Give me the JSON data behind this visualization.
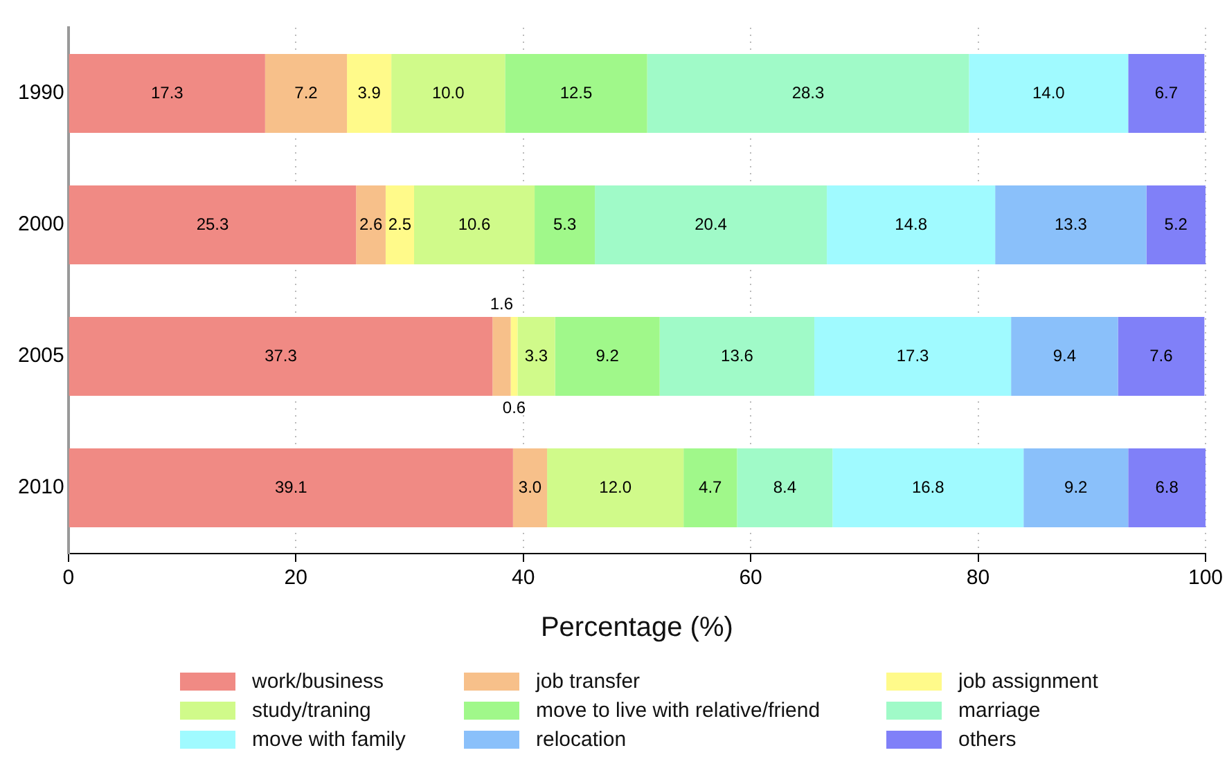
{
  "chart_data": {
    "type": "bar",
    "orientation": "horizontal",
    "stacked": true,
    "categories": [
      "1990",
      "2000",
      "2005",
      "2010"
    ],
    "xlabel": "Percentage (%)",
    "xlim": [
      0,
      100
    ],
    "xticks": [
      0,
      20,
      40,
      60,
      80,
      100
    ],
    "grid": "x",
    "legend": "bottom",
    "series": [
      {
        "name": "work/business",
        "color": "#f08a84",
        "values": [
          17.3,
          25.3,
          37.3,
          39.1
        ],
        "value_labels": [
          "17.3",
          "25.3",
          "37.3",
          "39.1"
        ]
      },
      {
        "name": "job transfer",
        "color": "#f7c08a",
        "values": [
          7.2,
          2.6,
          1.6,
          3.0
        ],
        "value_labels": [
          "7.2",
          "2.6",
          "1.6",
          "3.0"
        ]
      },
      {
        "name": "job assignment",
        "color": "#fffa8a",
        "values": [
          3.9,
          2.5,
          0.6,
          null
        ],
        "value_labels": [
          "3.9",
          "2.5",
          "0.6",
          null
        ]
      },
      {
        "name": "study/traning",
        "color": "#d0fa8a",
        "values": [
          10.0,
          10.6,
          3.3,
          12.0
        ],
        "value_labels": [
          "10.0",
          "10.6",
          "3.3",
          "12.0"
        ]
      },
      {
        "name": "move to live with relative/friend",
        "color": "#a0f88a",
        "values": [
          12.5,
          5.3,
          9.2,
          4.7
        ],
        "value_labels": [
          "12.5",
          "5.3",
          "9.2",
          "4.7"
        ]
      },
      {
        "name": "marriage",
        "color": "#a0fac8",
        "values": [
          28.3,
          20.4,
          13.6,
          8.4
        ],
        "value_labels": [
          "28.3",
          "20.4",
          "13.6",
          "8.4"
        ]
      },
      {
        "name": "move with family",
        "color": "#a0faff",
        "values": [
          14.0,
          14.8,
          17.3,
          16.8
        ],
        "value_labels": [
          "14.0",
          "14.8",
          "17.3",
          "16.8"
        ]
      },
      {
        "name": "relocation",
        "color": "#8ac0fa",
        "values": [
          null,
          13.3,
          9.4,
          9.2
        ],
        "value_labels": [
          null,
          "13.3",
          "9.4",
          "9.2"
        ]
      },
      {
        "name": "others",
        "color": "#8080f8",
        "values": [
          6.7,
          5.2,
          7.6,
          6.8
        ],
        "value_labels": [
          "6.7",
          "5.2",
          "7.6",
          "6.8"
        ]
      }
    ]
  }
}
